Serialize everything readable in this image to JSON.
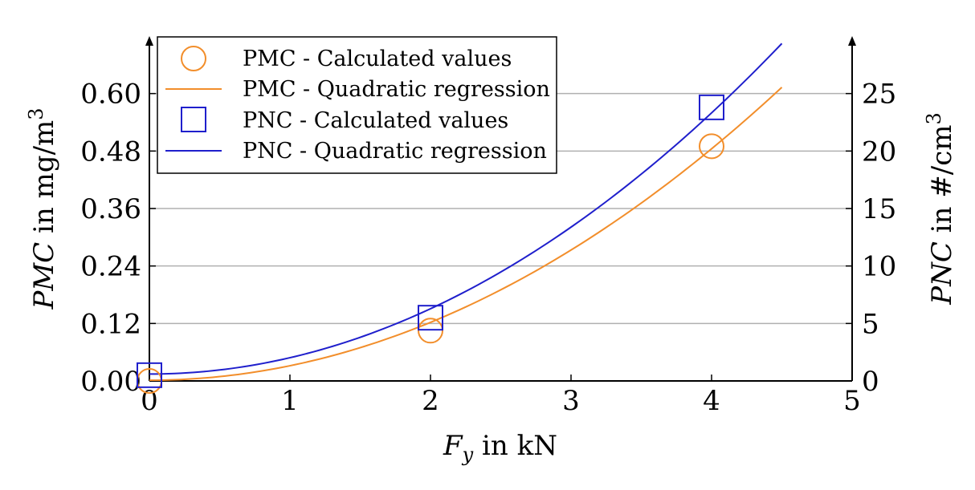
{
  "chart_data": {
    "type": "scatter",
    "title": "",
    "xlabel_var": "F",
    "xlabel_sub": "y",
    "xlabel_rest": " in kN",
    "ylabel_left_var": "PMC",
    "ylabel_left_rest": " in mg/m",
    "ylabel_left_sup": "3",
    "ylabel_right_var": "PNC",
    "ylabel_right_rest": " in #/cm",
    "ylabel_right_sup": "3",
    "xlim": [
      0,
      5
    ],
    "ylim_left": [
      0,
      0.72
    ],
    "ylim_right": [
      0,
      30
    ],
    "x_ticks": [
      0,
      1,
      2,
      3,
      4,
      5
    ],
    "x_tick_labels": [
      "0",
      "1",
      "2",
      "3",
      "4",
      "5"
    ],
    "y_left_ticks": [
      0,
      0.12,
      0.24,
      0.36,
      0.48,
      0.6
    ],
    "y_left_tick_labels": [
      "0.00",
      "0.12",
      "0.24",
      "0.36",
      "0.48",
      "0.60"
    ],
    "y_right_ticks": [
      0,
      5,
      10,
      15,
      20,
      25
    ],
    "y_right_tick_labels": [
      "0",
      "5",
      "10",
      "15",
      "20",
      "25"
    ],
    "grid": true,
    "legend_position": "top-left",
    "series": [
      {
        "name": "PMC - Calculated values",
        "kind": "scatter",
        "marker": "circle",
        "axis": "left",
        "color": "#f28e2b",
        "x": [
          0,
          2,
          4
        ],
        "y": [
          0.0,
          0.105,
          0.49
        ]
      },
      {
        "name": "PMC - Quadratic regression",
        "kind": "line",
        "axis": "left",
        "color": "#f28e2b",
        "coefficients": [
          0.0015,
          0.0,
          0.0302
        ],
        "x_range": [
          0,
          4.5
        ]
      },
      {
        "name": "PNC - Calculated values",
        "kind": "scatter",
        "marker": "square",
        "axis": "right",
        "color": "#1f1fcc",
        "x": [
          0,
          2,
          4
        ],
        "y": [
          0.5,
          5.5,
          23.8
        ]
      },
      {
        "name": "PNC - Quadratic regression",
        "kind": "line",
        "axis": "right",
        "color": "#1f1fcc",
        "coefficients": [
          0.6,
          0.0,
          1.42
        ],
        "x_range": [
          0,
          4.5
        ]
      }
    ]
  }
}
